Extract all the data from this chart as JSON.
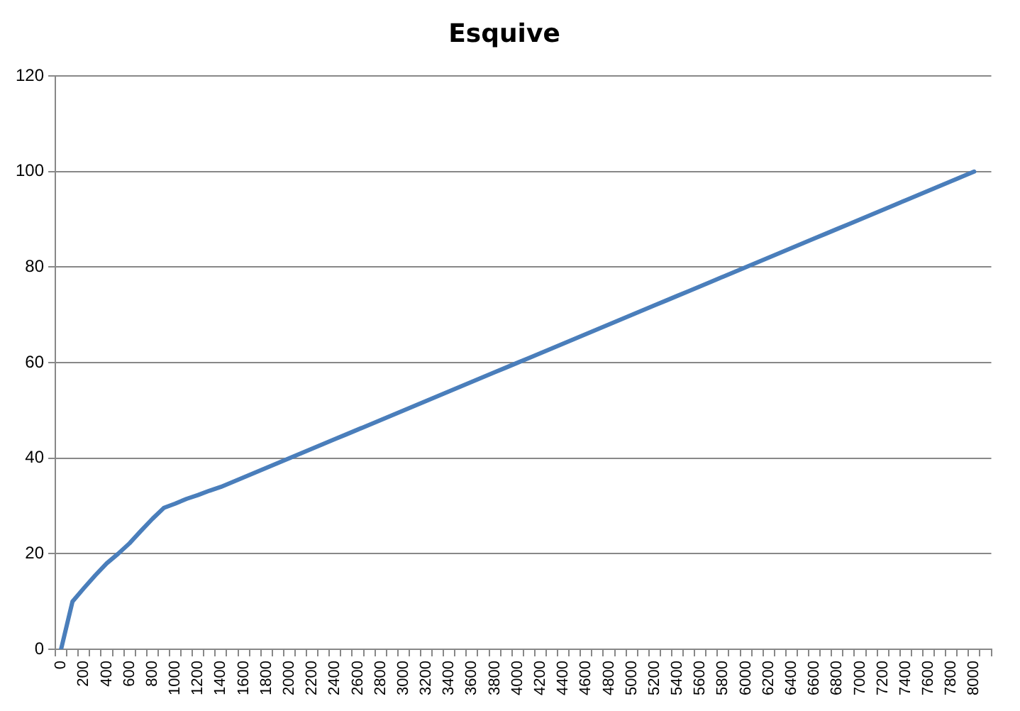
{
  "chart_data": {
    "type": "line",
    "title": "Esquive",
    "categories": [
      "0",
      null,
      "200",
      null,
      "400",
      null,
      "600",
      null,
      "800",
      null,
      "1000",
      null,
      "1200",
      null,
      "1400",
      null,
      "1600",
      null,
      "1800",
      null,
      "2000",
      null,
      "2200",
      null,
      "2400",
      null,
      "2600",
      null,
      "2800",
      null,
      "3000",
      null,
      "3200",
      null,
      "3400",
      null,
      "3600",
      null,
      "3800",
      null,
      "4000",
      null,
      "4200",
      null,
      "4400",
      null,
      "4600",
      null,
      "4800",
      null,
      "5000",
      null,
      "5200",
      null,
      "5400",
      null,
      "5600",
      null,
      "5800",
      null,
      "6000",
      null,
      "6200",
      null,
      "6400",
      null,
      "6600",
      null,
      "6800",
      null,
      "7000",
      null,
      "7200",
      null,
      "7400",
      null,
      "7600",
      null,
      "7800",
      null,
      "8000",
      null
    ],
    "series": [
      {
        "color": "#4a7ebb",
        "values": [
          0,
          10,
          12.8,
          15.5,
          18,
          20,
          22.2,
          24.8,
          27.3,
          29.6,
          30.5,
          31.5,
          32.3,
          33.2,
          34,
          35,
          36,
          37,
          38,
          39,
          40,
          41,
          42,
          43,
          44,
          45,
          46,
          47,
          48,
          49,
          50,
          51,
          52,
          53,
          54,
          55,
          56,
          57,
          58,
          59,
          60,
          61,
          62,
          63,
          64,
          65,
          66,
          67,
          68,
          69,
          70,
          71,
          72,
          73,
          74,
          75,
          76,
          77,
          78,
          79,
          80,
          81,
          82,
          83,
          84,
          85,
          86,
          87,
          88,
          89,
          90,
          91,
          92,
          93,
          94,
          95,
          96,
          97,
          98,
          99,
          100,
          null
        ]
      }
    ],
    "ylim": [
      0,
      120
    ],
    "yticks": [
      0,
      20,
      40,
      60,
      80,
      100,
      120
    ],
    "grid": "y",
    "legend": false,
    "marker": "none",
    "line_style": "solid"
  }
}
